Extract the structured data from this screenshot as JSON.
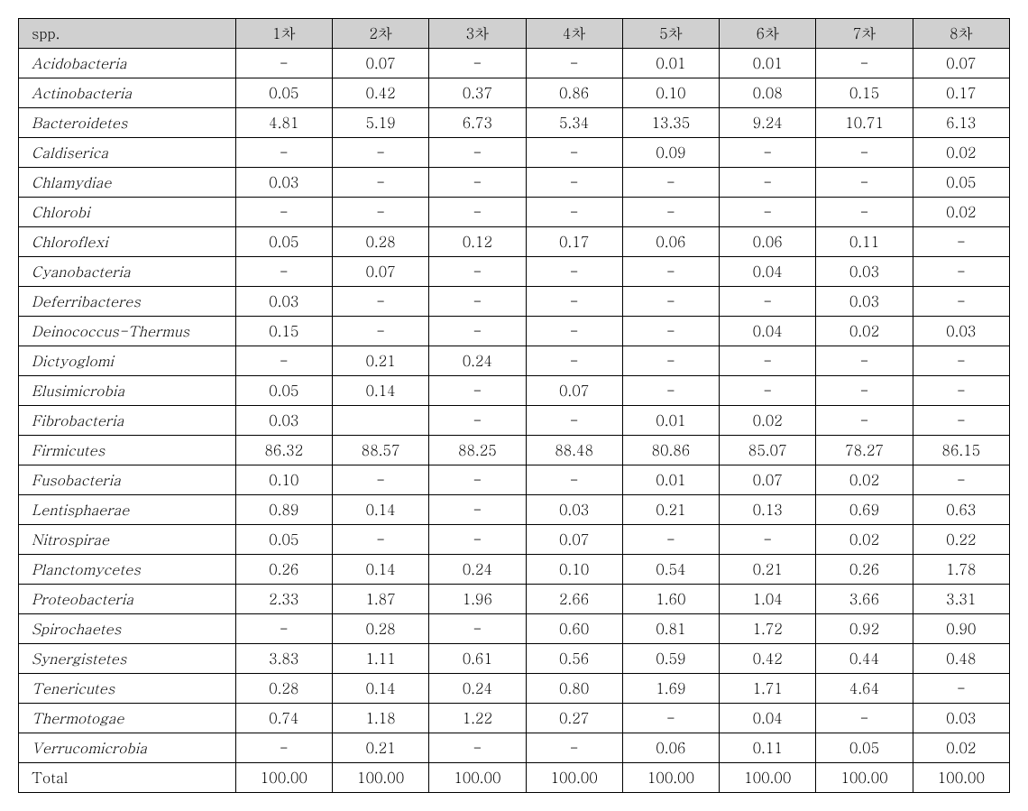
{
  "table": {
    "header_label": "spp.",
    "columns": [
      "1차",
      "2차",
      "3차",
      "4차",
      "5차",
      "6차",
      "7차",
      "8차"
    ],
    "total_label": "Total",
    "header_bg": "#d0d0d0",
    "border_color": "#000000",
    "font_family": "Batang, Times New Roman, serif",
    "cell_fontsize": 16,
    "rows": [
      {
        "spp": "Acidobacteria",
        "vals": [
          "-",
          "0.07",
          "-",
          "-",
          "0.01",
          "0.01",
          "-",
          "0.07"
        ]
      },
      {
        "spp": "Actinobacteria",
        "vals": [
          "0.05",
          "0.42",
          "0.37",
          "0.86",
          "0.10",
          "0.08",
          "0.15",
          "0.17"
        ]
      },
      {
        "spp": "Bacteroidetes",
        "vals": [
          "4.81",
          "5.19",
          "6.73",
          "5.34",
          "13.35",
          "9.24",
          "10.71",
          "6.13"
        ]
      },
      {
        "spp": "Caldiserica",
        "vals": [
          "-",
          "-",
          "-",
          "-",
          "0.09",
          "-",
          "-",
          "0.02"
        ]
      },
      {
        "spp": "Chlamydiae",
        "vals": [
          "0.03",
          "-",
          "-",
          "-",
          "-",
          "-",
          "-",
          "0.05"
        ]
      },
      {
        "spp": "Chlorobi",
        "vals": [
          "-",
          "-",
          "-",
          "-",
          "-",
          "-",
          "-",
          "0.02"
        ]
      },
      {
        "spp": "Chloroflexi",
        "vals": [
          "0.05",
          "0.28",
          "0.12",
          "0.17",
          "0.06",
          "0.06",
          "0.11",
          "-"
        ]
      },
      {
        "spp": "Cyanobacteria",
        "vals": [
          "-",
          "0.07",
          "-",
          "-",
          "-",
          "0.04",
          "0.03",
          "-"
        ]
      },
      {
        "spp": "Deferribacteres",
        "vals": [
          "0.03",
          "-",
          "-",
          "-",
          "-",
          "-",
          "0.03",
          "-"
        ]
      },
      {
        "spp": "Deinococcus-Thermus",
        "vals": [
          "0.15",
          "-",
          "-",
          "-",
          "-",
          "0.04",
          "0.02",
          "0.03"
        ]
      },
      {
        "spp": "Dictyoglomi",
        "vals": [
          "-",
          "0.21",
          "0.24",
          "-",
          "-",
          "-",
          "-",
          "-"
        ]
      },
      {
        "spp": "Elusimicrobia",
        "vals": [
          "0.05",
          "0.14",
          "-",
          "0.07",
          "-",
          "-",
          "-",
          "-"
        ]
      },
      {
        "spp": "Fibrobacteria",
        "vals": [
          "0.03",
          "",
          "-",
          "-",
          "0.01",
          "0.02",
          "-",
          "-"
        ]
      },
      {
        "spp": "Firmicutes",
        "vals": [
          "86.32",
          "88.57",
          "88.25",
          "88.48",
          "80.86",
          "85.07",
          "78.27",
          "86.15"
        ]
      },
      {
        "spp": "Fusobacteria",
        "vals": [
          "0.10",
          "-",
          "-",
          "-",
          "0.01",
          "0.07",
          "0.02",
          "-"
        ]
      },
      {
        "spp": "Lentisphaerae",
        "vals": [
          "0.89",
          "0.14",
          "-",
          "0.03",
          "0.21",
          "0.13",
          "0.69",
          "0.63"
        ]
      },
      {
        "spp": "Nitrospirae",
        "vals": [
          "0.05",
          "-",
          "-",
          "0.07",
          "-",
          "-",
          "0.02",
          "0.22"
        ]
      },
      {
        "spp": "Planctomycetes",
        "vals": [
          "0.26",
          "0.14",
          "0.24",
          "0.10",
          "0.54",
          "0.21",
          "0.26",
          "1.78"
        ]
      },
      {
        "spp": "Proteobacteria",
        "vals": [
          "2.33",
          "1.87",
          "1.96",
          "2.66",
          "1.60",
          "1.04",
          "3.66",
          "3.31"
        ]
      },
      {
        "spp": "Spirochaetes",
        "vals": [
          "-",
          "0.28",
          "-",
          "0.60",
          "0.81",
          "1.72",
          "0.92",
          "0.90"
        ]
      },
      {
        "spp": "Synergistetes",
        "vals": [
          "3.83",
          "1.11",
          "0.61",
          "0.56",
          "0.59",
          "0.42",
          "0.44",
          "0.48"
        ]
      },
      {
        "spp": "Tenericutes",
        "vals": [
          "0.28",
          "0.14",
          "0.24",
          "0.80",
          "1.69",
          "1.71",
          "4.64",
          "-"
        ]
      },
      {
        "spp": "Thermotogae",
        "vals": [
          "0.74",
          "1.18",
          "1.22",
          "0.27",
          "-",
          "0.04",
          "-",
          "0.03"
        ]
      },
      {
        "spp": "Verrucomicrobia",
        "vals": [
          "-",
          "0.21",
          "-",
          "-",
          "0.06",
          "0.11",
          "0.05",
          "0.02"
        ]
      }
    ],
    "totals": [
      "100.00",
      "100.00",
      "100.00",
      "100.00",
      "100.00",
      "100.00",
      "100.00",
      "100.00"
    ]
  }
}
